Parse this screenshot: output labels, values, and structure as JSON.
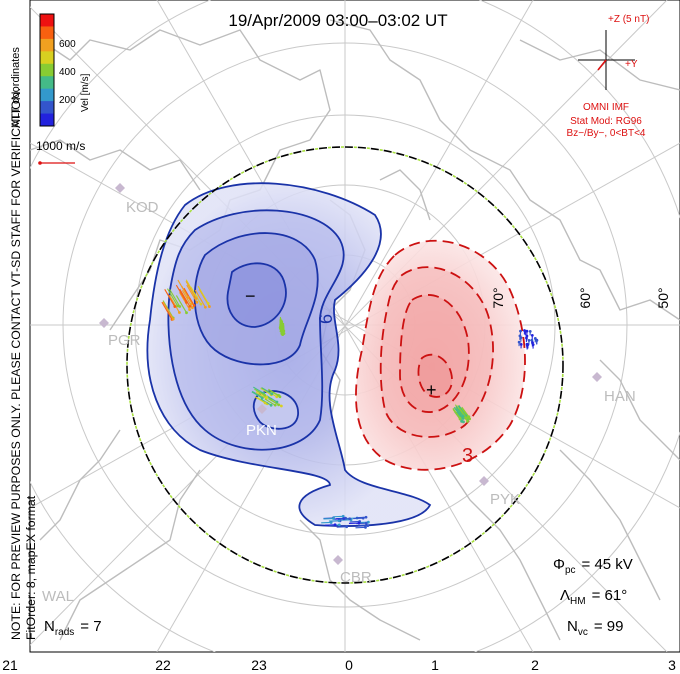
{
  "title": "19/Apr/2009 03:00–03:02 UT",
  "side_note_lines": [
    "MLT coordinates",
    "NOTE: FOR PREVIEW PURPOSES ONLY. PLEASE CONTACT VT-SD STAFF FOR VERIFICATION.",
    "FitOrder: 8, mapEX format"
  ],
  "colorbar": {
    "label": "Vel [m/s]",
    "ticks": [
      "600",
      "400",
      "200"
    ],
    "colors": [
      "#ee1111",
      "#f86010",
      "#f0a020",
      "#d8d020",
      "#88cc33",
      "#44bb88",
      "#3399cc",
      "#3355cc",
      "#2222dd"
    ]
  },
  "vector_scale": {
    "label": "1000 m/s"
  },
  "imf": {
    "plus_z": "+Z (5 nT)",
    "plus_y": "+Y",
    "source": "OMNI IMF",
    "stat_mod_1": "Stat Mod: RG96",
    "stat_mod_2": "Bz−/By−, 0<BT<4",
    "color": "#dd1111"
  },
  "latitude_labels": [
    "70°",
    "60°",
    "50°"
  ],
  "stations": [
    "KOD",
    "PGR",
    "PKN",
    "HAN",
    "PYK",
    "CBR",
    "WAL"
  ],
  "potential": {
    "neg_color": "#1a33a8",
    "pos_color": "#cc1111",
    "neg_label": "6",
    "pos_label": "3",
    "min_mark": "−",
    "max_mark": "+"
  },
  "stats": {
    "phi": {
      "sym": "Φ",
      "sub": "pc",
      "value": "= 45 kV"
    },
    "lambda": {
      "sym": "Λ",
      "sub": "HM",
      "value": "= 61°"
    },
    "nvc": {
      "sym": "N",
      "sub": "vc",
      "value": "= 99"
    },
    "nrads": {
      "sym": "N",
      "sub": "rads",
      "value": "= 7"
    }
  },
  "mlt_ticks": [
    "21",
    "22",
    "23",
    "0",
    "1",
    "2",
    "3"
  ]
}
